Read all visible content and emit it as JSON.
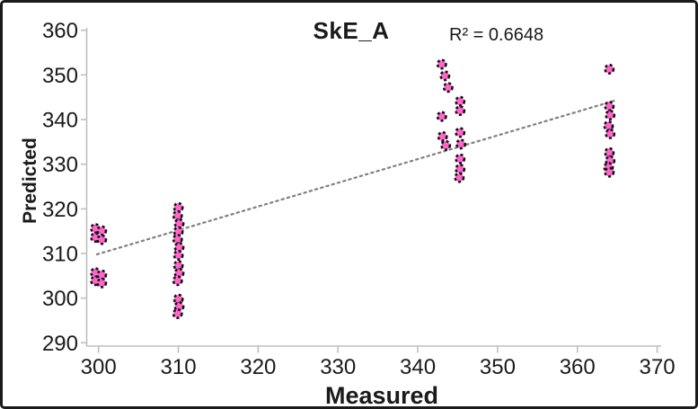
{
  "figure": {
    "background": "#ffffff",
    "border_color": "#1a1a1a"
  },
  "chart_data": {
    "type": "scatter",
    "title": "SkE_A",
    "annotation": "R² = 0.6648",
    "xlabel": "Measured",
    "ylabel": "Predicted",
    "x_ticks": [
      300,
      310,
      320,
      330,
      340,
      350,
      360,
      370
    ],
    "y_ticks": [
      290,
      300,
      310,
      320,
      330,
      340,
      350,
      360
    ],
    "xlim": [
      298.5,
      370.5
    ],
    "ylim": [
      289,
      360.6
    ],
    "grid": false,
    "legend": "none",
    "axis_color": "#bfbfbf",
    "text_color": "#1a1a1a",
    "marker": {
      "shape": "circle",
      "fill": "#ff66cc",
      "stroke": "#111111",
      "stroke_style": "dashed"
    },
    "trendline": {
      "style": "dotted",
      "color": "#808080",
      "x1": 299.8,
      "y1": 309.8,
      "x2": 364.6,
      "y2": 344.2,
      "r_squared": 0.6648
    },
    "points": [
      [
        299.6,
        315.6
      ],
      [
        300.4,
        315.1
      ],
      [
        299.6,
        313.6
      ],
      [
        300.4,
        313.1
      ],
      [
        299.6,
        305.7
      ],
      [
        300.4,
        305.2
      ],
      [
        299.6,
        303.9
      ],
      [
        300.4,
        303.4
      ],
      [
        310.0,
        320.3
      ],
      [
        309.9,
        318.5
      ],
      [
        310.1,
        316.7
      ],
      [
        310.0,
        314.9
      ],
      [
        309.9,
        313.2
      ],
      [
        310.1,
        311.4
      ],
      [
        310.0,
        309.6
      ],
      [
        310.0,
        307.3
      ],
      [
        310.1,
        305.6
      ],
      [
        309.9,
        303.9
      ],
      [
        310.0,
        299.8
      ],
      [
        310.1,
        298.1
      ],
      [
        309.9,
        296.5
      ],
      [
        343.0,
        352.4
      ],
      [
        343.4,
        349.8
      ],
      [
        343.8,
        347.2
      ],
      [
        345.3,
        344.1
      ],
      [
        345.3,
        342.0
      ],
      [
        343.0,
        340.7
      ],
      [
        345.3,
        337.1
      ],
      [
        343.1,
        336.2
      ],
      [
        343.5,
        334.2
      ],
      [
        345.4,
        334.5
      ],
      [
        345.3,
        331.2
      ],
      [
        345.3,
        328.9
      ],
      [
        345.2,
        327.0
      ],
      [
        364.0,
        351.3
      ],
      [
        364.0,
        343.0
      ],
      [
        364.1,
        341.0
      ],
      [
        363.9,
        338.6
      ],
      [
        364.1,
        336.8
      ],
      [
        364.0,
        332.6
      ],
      [
        364.1,
        330.8
      ],
      [
        363.9,
        329.3
      ],
      [
        364.0,
        328.2
      ]
    ]
  }
}
